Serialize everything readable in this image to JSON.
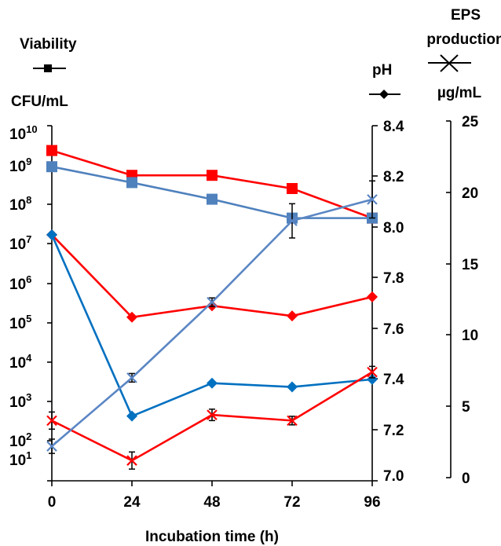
{
  "chart_data": {
    "type": "line",
    "xlabel": "Incubation time (h)",
    "x": [
      0,
      24,
      48,
      72,
      96
    ],
    "axes": {
      "left": {
        "title": "Viability",
        "unit": "CFU/mL",
        "scale": "log10",
        "range": [
          1,
          10000000000
        ],
        "tick_labels": [
          {
            "base": "10",
            "exp": "10"
          },
          {
            "base": "10",
            "exp": "9"
          },
          {
            "base": "10",
            "exp": "8"
          },
          {
            "base": "10",
            "exp": "7"
          },
          {
            "base": "10",
            "exp": "6"
          },
          {
            "base": "10",
            "exp": "5"
          },
          {
            "base": "10",
            "exp": "4"
          },
          {
            "base": "10",
            "exp": "3"
          },
          {
            "base": "10",
            "exp": "2"
          },
          {
            "base": "10",
            "exp": "1"
          }
        ]
      },
      "ph": {
        "title": "pH",
        "range": [
          7.0,
          8.4
        ],
        "ticks": [
          "8.4",
          "8.2",
          "8.0",
          "7.8",
          "7.6",
          "7.4",
          "7.2",
          "7.0"
        ]
      },
      "eps": {
        "title_line1": "EPS",
        "title_line2": "production",
        "unit": "µg/mL",
        "range": [
          0,
          25
        ],
        "ticks": [
          "25",
          "20",
          "15",
          "10",
          "5",
          "0"
        ]
      }
    },
    "x_tick_labels": [
      "0",
      "24",
      "48",
      "72",
      "96"
    ],
    "legend_markers": {
      "viability": "square-line",
      "ph": "diamond-line",
      "eps": "cross-line"
    },
    "colors": {
      "red": "#ff0000",
      "blue_square": "#4f81bd",
      "blue_diamond": "#0070c0",
      "blue_cross": "#5b86c4"
    },
    "series": [
      {
        "axis": "left",
        "marker": "square",
        "color": "#ff0000",
        "values": [
          2000000000,
          400000000,
          400000000,
          170000000,
          25000000
        ]
      },
      {
        "axis": "left",
        "marker": "square",
        "color": "#4f81bd",
        "values": [
          700000000,
          250000000,
          85000000,
          25000000,
          25000000
        ]
      },
      {
        "axis": "ph",
        "marker": "diamond",
        "color": "#ff0000",
        "values": [
          7.97,
          7.645,
          7.69,
          7.65,
          7.725
        ]
      },
      {
        "axis": "ph",
        "marker": "diamond",
        "color": "#0070c0",
        "values": [
          7.97,
          7.255,
          7.385,
          7.37,
          7.4
        ]
      },
      {
        "axis": "eps",
        "marker": "cross",
        "color": "#ff0000",
        "values": [
          4.0,
          1.2,
          4.4,
          4.0,
          7.4
        ],
        "errors": [
          0.6,
          0.6,
          0.4,
          0.3,
          0.4
        ]
      },
      {
        "axis": "eps",
        "marker": "cross",
        "color": "#5b86c4",
        "values": [
          2.2,
          7.0,
          12.3,
          18.0,
          19.5
        ],
        "errors": [
          0.5,
          0.3,
          0.3,
          1.2,
          1.3
        ]
      }
    ]
  }
}
